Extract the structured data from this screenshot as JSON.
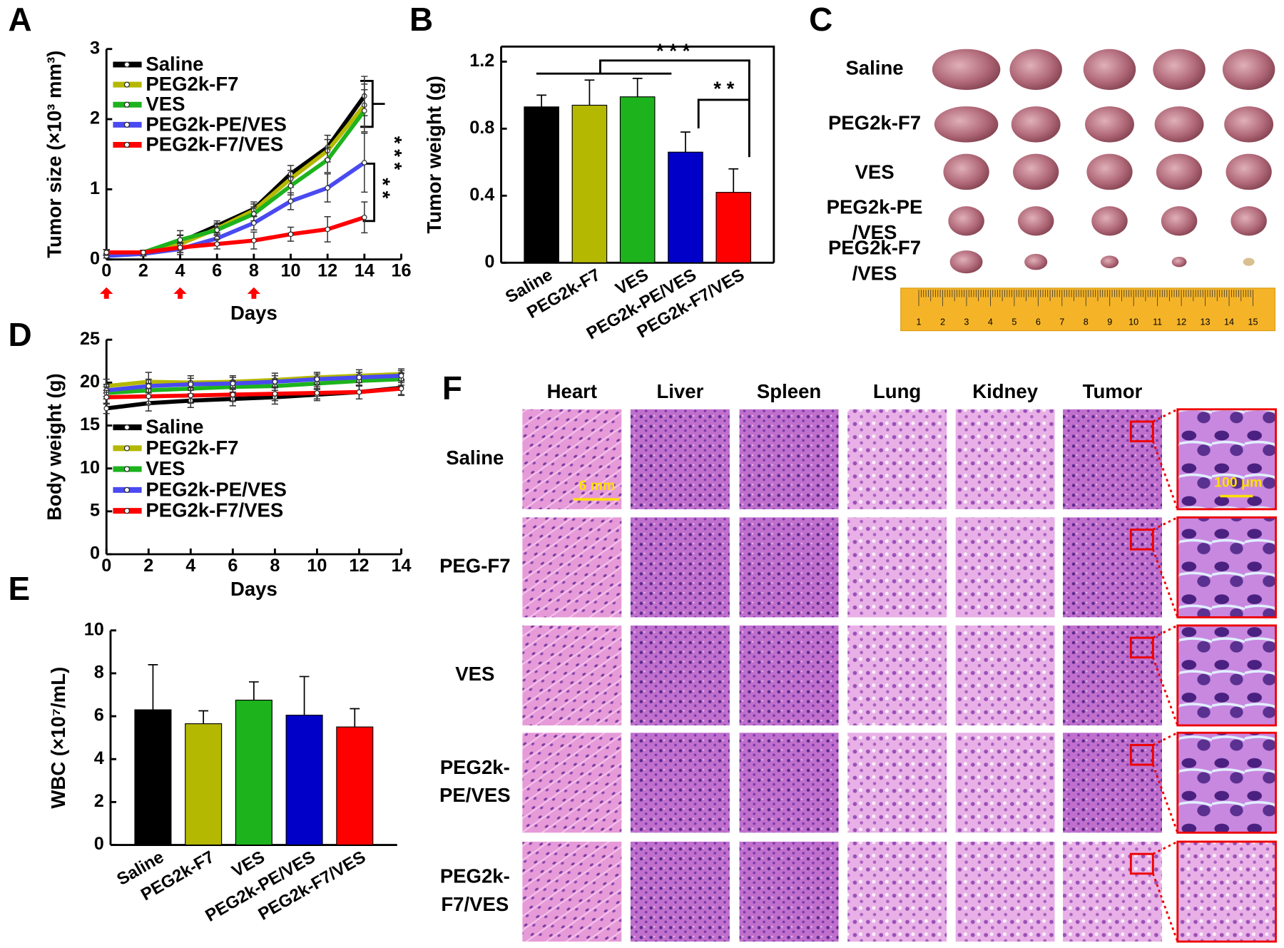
{
  "chart_data": [
    {
      "type": "line",
      "panel": "A",
      "x_label": "Days",
      "y_label": "Tumor size (×10³ mm³)",
      "x": [
        0,
        2,
        4,
        6,
        8,
        10,
        12,
        14
      ],
      "xlim": [
        0,
        16
      ],
      "xticks": [
        0,
        2,
        4,
        6,
        8,
        10,
        12,
        14,
        16
      ],
      "ylim": [
        0,
        3
      ],
      "yticks": [
        0,
        1,
        2,
        3
      ],
      "treatment_days": [
        0,
        4,
        8
      ],
      "treatment_color": "#ff0000",
      "annotations": [
        "* * *",
        "* *"
      ],
      "series": [
        {
          "name": "Saline",
          "color": "#000000",
          "values": [
            0.1,
            0.1,
            0.25,
            0.48,
            0.72,
            1.22,
            1.6,
            2.33
          ],
          "errors": [
            0.04,
            0.03,
            0.1,
            0.07,
            0.1,
            0.12,
            0.17,
            0.28
          ]
        },
        {
          "name": "PEG2k-F7",
          "color": "#b5b800",
          "values": [
            0.1,
            0.1,
            0.22,
            0.44,
            0.7,
            1.15,
            1.55,
            2.2
          ],
          "errors": [
            0.04,
            0.03,
            0.12,
            0.08,
            0.09,
            0.12,
            0.16,
            0.3
          ]
        },
        {
          "name": "VES",
          "color": "#1db31d",
          "values": [
            0.1,
            0.1,
            0.28,
            0.42,
            0.65,
            1.05,
            1.42,
            2.12
          ],
          "errors": [
            0.04,
            0.03,
            0.13,
            0.08,
            0.1,
            0.13,
            0.18,
            0.3
          ]
        },
        {
          "name": "PEG2k-PE/VES",
          "color": "#4a4af0",
          "values": [
            0.05,
            0.08,
            0.15,
            0.3,
            0.52,
            0.83,
            1.02,
            1.38
          ],
          "errors": [
            0.03,
            0.03,
            0.08,
            0.08,
            0.1,
            0.12,
            0.2,
            0.42
          ]
        },
        {
          "name": "PEG2k-F7/VES",
          "color": "#ff0000",
          "values": [
            0.1,
            0.1,
            0.17,
            0.22,
            0.27,
            0.36,
            0.43,
            0.6
          ],
          "errors": [
            0.04,
            0.03,
            0.07,
            0.07,
            0.12,
            0.1,
            0.18,
            0.22
          ]
        }
      ]
    },
    {
      "type": "bar",
      "panel": "B",
      "y_label": "Tumor weight (g)",
      "categories": [
        "Saline",
        "PEG2k-F7",
        "VES",
        "PEG2k-PE/VES",
        "PEG2k-F7/VES"
      ],
      "values": [
        0.93,
        0.94,
        0.99,
        0.66,
        0.42
      ],
      "errors": [
        0.07,
        0.15,
        0.11,
        0.12,
        0.14
      ],
      "colors": [
        "#000000",
        "#b5b800",
        "#1db31d",
        "#0000c8",
        "#ff0000"
      ],
      "ylim": [
        0,
        1.29
      ],
      "yticks": [
        0,
        0.4,
        0.8,
        1.2
      ],
      "annotations": [
        "* * *",
        "* *"
      ]
    },
    {
      "type": "line",
      "panel": "D",
      "x_label": "Days",
      "y_label": "Body weight (g)",
      "x": [
        0,
        2,
        4,
        6,
        8,
        10,
        12,
        14
      ],
      "xlim": [
        0,
        14
      ],
      "xticks": [
        0,
        2,
        4,
        6,
        8,
        10,
        12,
        14
      ],
      "ylim": [
        0,
        25
      ],
      "yticks": [
        0,
        5,
        10,
        15,
        20,
        25
      ],
      "series": [
        {
          "name": "Saline",
          "color": "#000000",
          "values": [
            17,
            17.6,
            17.9,
            18.1,
            18.3,
            18.6,
            18.9,
            19.4
          ],
          "errors": [
            0.6,
            0.9,
            0.8,
            0.8,
            0.8,
            0.7,
            0.8,
            0.9
          ]
        },
        {
          "name": "PEG2k-F7",
          "color": "#b5b800",
          "values": [
            19.6,
            20.1,
            20.0,
            20.1,
            20.3,
            20.6,
            20.8,
            21.0
          ],
          "errors": [
            0.8,
            1.1,
            0.8,
            0.7,
            0.8,
            0.6,
            0.7,
            0.6
          ]
        },
        {
          "name": "VES",
          "color": "#1db31d",
          "values": [
            18.8,
            19.1,
            19.3,
            19.5,
            19.6,
            19.9,
            20.2,
            20.4
          ],
          "errors": [
            0.7,
            0.8,
            0.7,
            0.7,
            0.8,
            0.7,
            0.6,
            0.7
          ]
        },
        {
          "name": "PEG2k-PE/VES",
          "color": "#4a4af0",
          "values": [
            19.1,
            19.6,
            19.8,
            19.9,
            20.1,
            20.4,
            20.6,
            20.8
          ],
          "errors": [
            0.7,
            0.8,
            0.7,
            0.7,
            0.7,
            0.6,
            0.6,
            0.6
          ]
        },
        {
          "name": "PEG2k-F7/VES",
          "color": "#ff0000",
          "values": [
            18.3,
            18.4,
            18.5,
            18.6,
            18.7,
            18.8,
            18.9,
            19.3
          ],
          "errors": [
            0.8,
            0.9,
            0.9,
            0.8,
            0.8,
            0.7,
            0.8,
            0.7
          ]
        }
      ]
    },
    {
      "type": "bar",
      "panel": "E",
      "y_label": "WBC (×10⁷/mL)",
      "categories": [
        "Saline",
        "PEG2k-F7",
        "VES",
        "PEG2k-PE/VES",
        "PEG2k-F7/VES"
      ],
      "values": [
        6.3,
        5.65,
        6.75,
        6.05,
        5.5
      ],
      "errors": [
        2.1,
        0.6,
        0.85,
        1.8,
        0.85
      ],
      "colors": [
        "#000000",
        "#b5b800",
        "#1db31d",
        "#0000c8",
        "#ff0000"
      ],
      "ylim": [
        0,
        10
      ],
      "yticks": [
        0,
        2,
        4,
        6,
        8,
        10
      ]
    }
  ],
  "panel_c": {
    "panel": "C",
    "rows": [
      [
        "Saline"
      ],
      [
        "PEG2k-F7"
      ],
      [
        "VES"
      ],
      [
        "PEG2k-PE",
        "/VES"
      ],
      [
        "PEG2k-F7",
        "/VES"
      ]
    ],
    "ruler_labels": [
      1,
      2,
      3,
      4,
      5,
      6,
      7,
      8,
      9,
      10,
      11,
      12,
      13,
      14,
      15
    ]
  },
  "panel_f": {
    "panel": "F",
    "columns": [
      "Heart",
      "Liver",
      "Spleen",
      "Lung",
      "Kidney",
      "Tumor"
    ],
    "rows": [
      [
        "Saline"
      ],
      [
        "PEG-F7"
      ],
      [
        "VES"
      ],
      [
        "PEG2k-",
        "PE/VES"
      ],
      [
        "PEG2k-",
        "F7/VES"
      ]
    ],
    "scale_bars": [
      "6 mm",
      "100 μm"
    ]
  }
}
